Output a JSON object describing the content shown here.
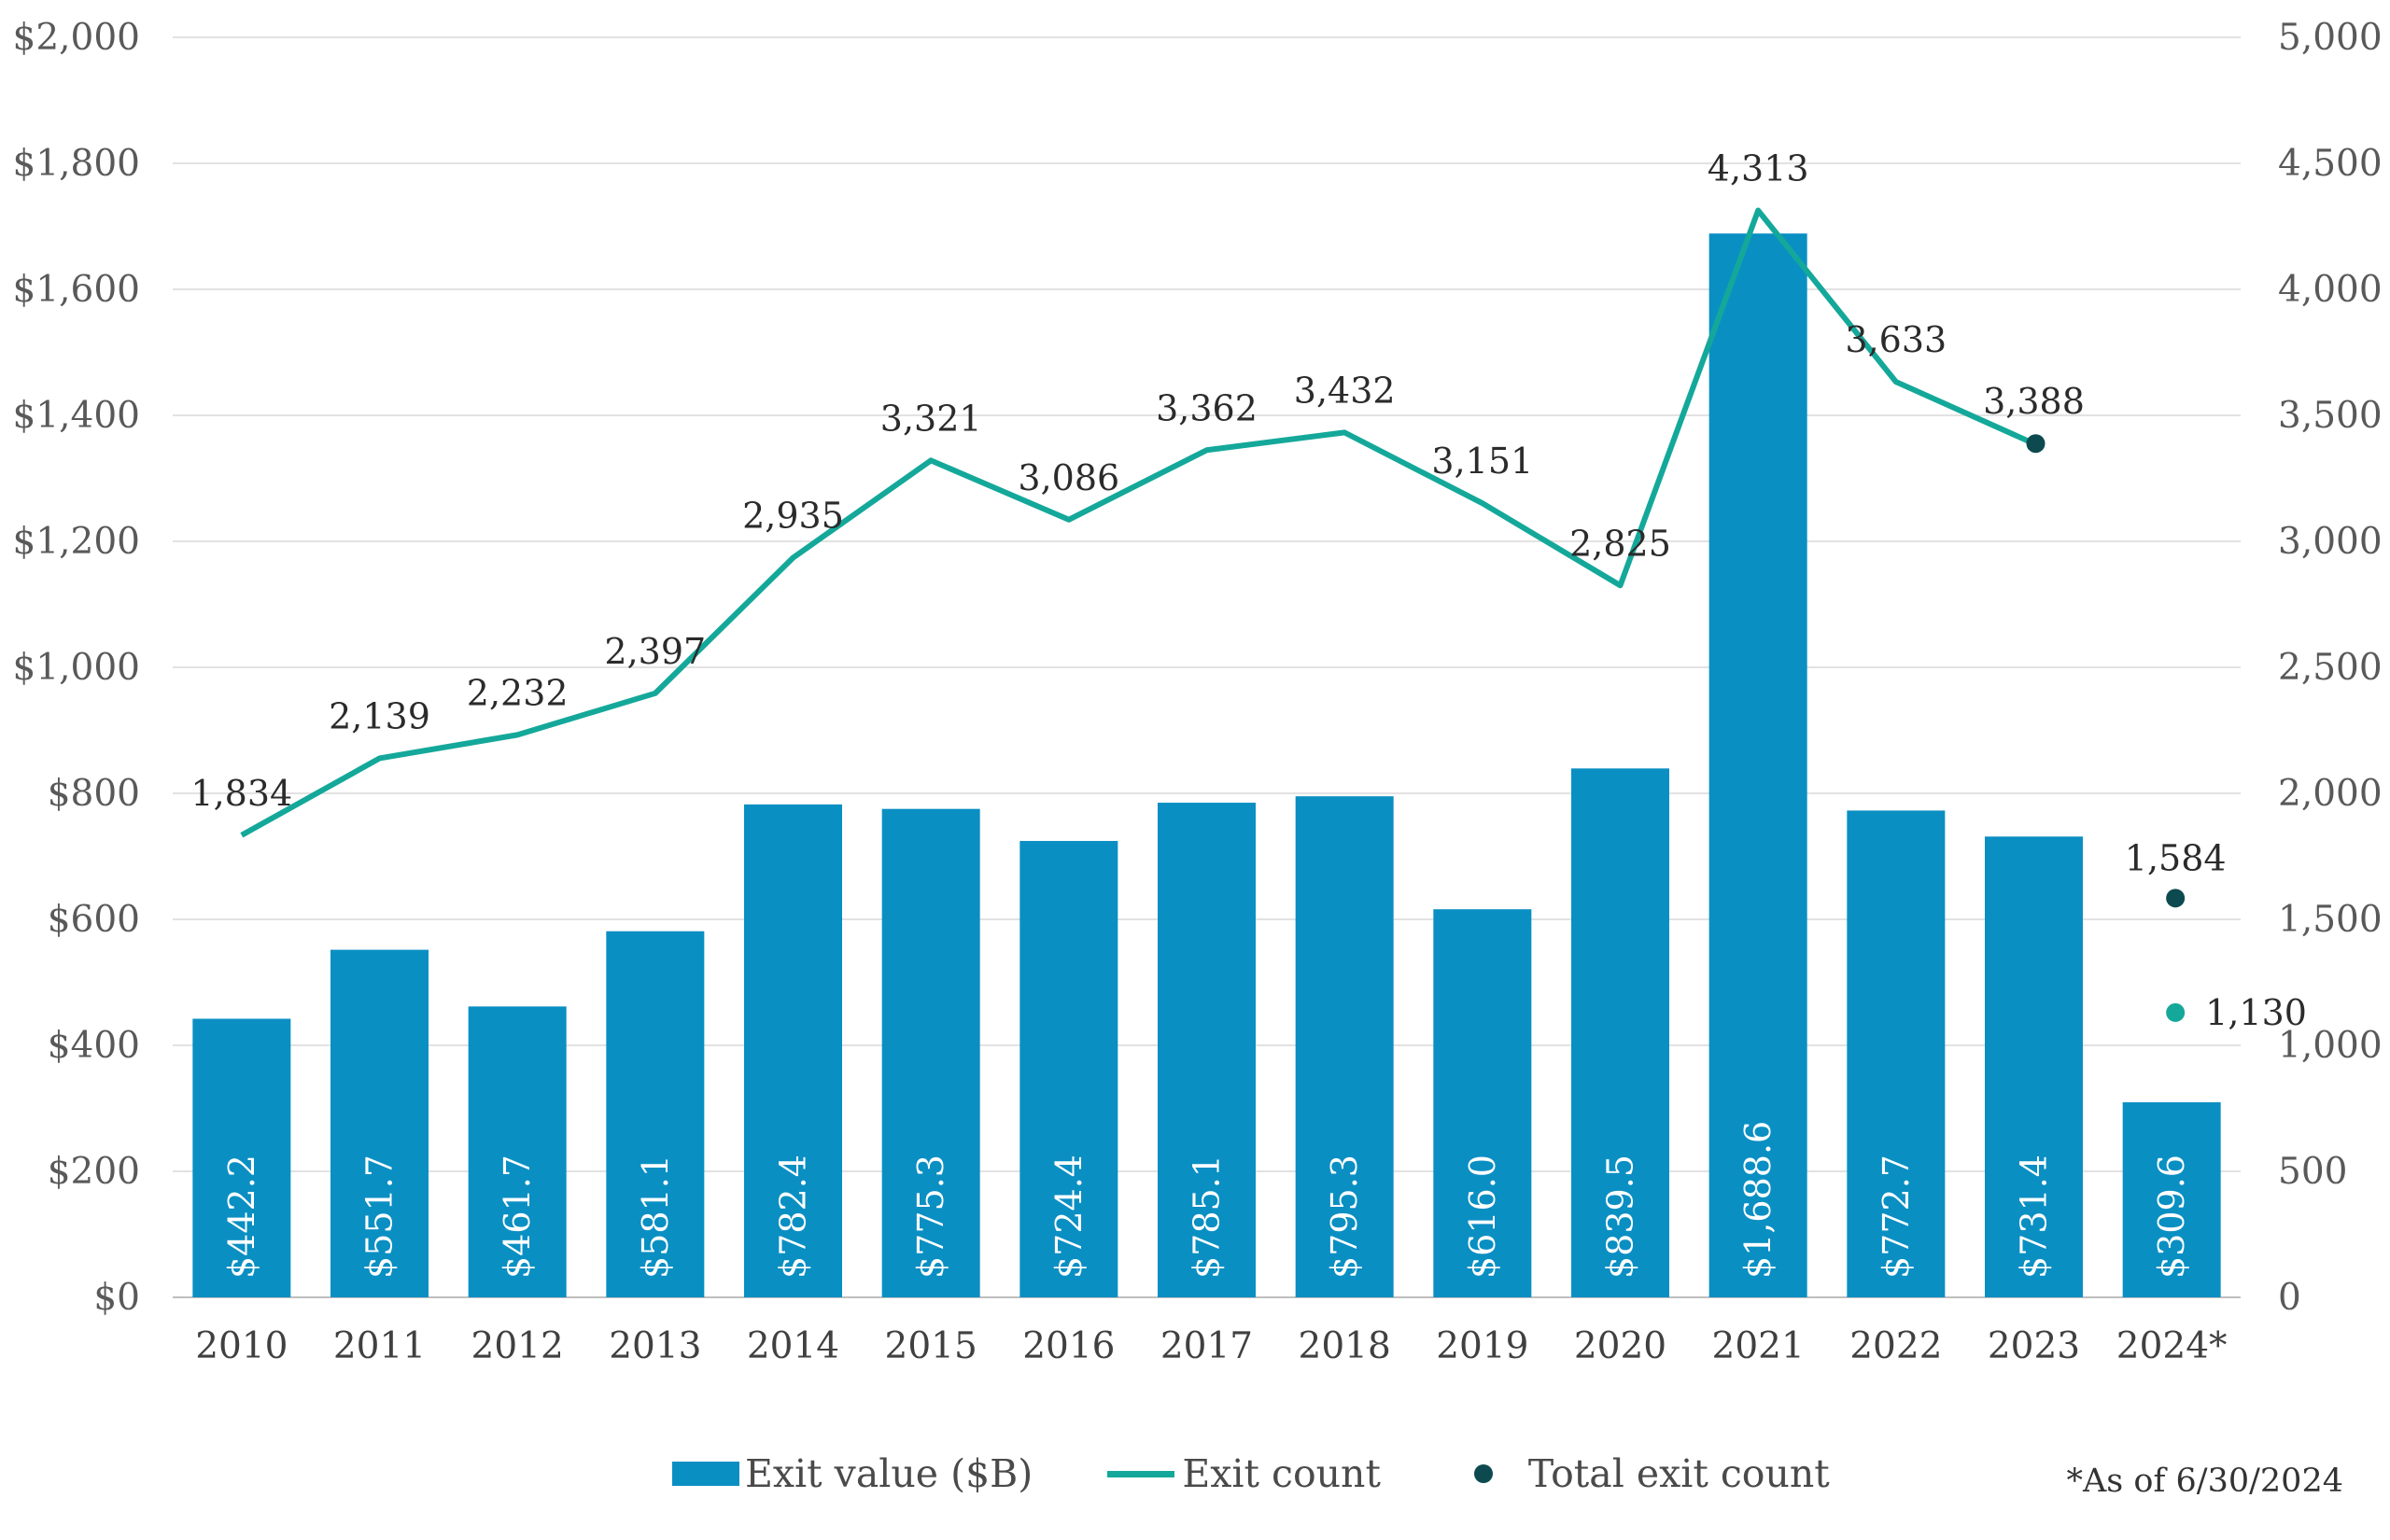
{
  "chart_data": {
    "type": "bar",
    "categories": [
      "2010",
      "2011",
      "2012",
      "2013",
      "2014",
      "2015",
      "2016",
      "2017",
      "2018",
      "2019",
      "2020",
      "2021",
      "2022",
      "2023",
      "2024*"
    ],
    "left_axis": {
      "ylim": [
        0,
        2000
      ],
      "ticks": [
        "$0",
        "$200",
        "$400",
        "$600",
        "$800",
        "$1,000",
        "$1,200",
        "$1,400",
        "$1,600",
        "$1,800",
        "$2,000"
      ]
    },
    "right_axis": {
      "ylim": [
        0,
        5000
      ],
      "ticks": [
        "0",
        "500",
        "1,000",
        "1,500",
        "2,000",
        "2,500",
        "3,000",
        "3,500",
        "4,000",
        "4,500",
        "5,000"
      ]
    },
    "series": [
      {
        "name": "Exit value ($B)",
        "type": "bar",
        "axis": "left",
        "color": "#0a8fc3",
        "values": [
          442.2,
          551.7,
          461.7,
          581.1,
          782.4,
          775.3,
          724.4,
          785.1,
          795.3,
          616.0,
          839.5,
          1688.6,
          772.7,
          731.4,
          309.6
        ],
        "labels": [
          "$442.2",
          "$551.7",
          "$461.7",
          "$581.1",
          "$782.4",
          "$775.3",
          "$724.4",
          "$785.1",
          "$795.3",
          "$616.0",
          "$839.5",
          "$1,688.6",
          "$772.7",
          "$731.4",
          "$309.6"
        ]
      },
      {
        "name": "Exit count",
        "type": "line",
        "axis": "right",
        "color": "#14a89a",
        "values": [
          1834,
          2139,
          2232,
          2397,
          2935,
          3321,
          3086,
          3362,
          3432,
          3151,
          2825,
          4313,
          3633,
          3388,
          null
        ],
        "labels": [
          "1,834",
          "2,139",
          "2,232",
          "2,397",
          "2,935",
          "3,321",
          "3,086",
          "3,362",
          "3,432",
          "3,151",
          "2,825",
          "4,313",
          "3,633",
          "3,388",
          ""
        ]
      },
      {
        "name": "Total exit count",
        "type": "scatter",
        "axis": "right",
        "color": "#0d4a4f",
        "points": [
          {
            "category": "2023",
            "value": 3388
          },
          {
            "category": "2024*",
            "value": 1584,
            "label": "1,584"
          }
        ]
      }
    ],
    "extra_points": [
      {
        "category": "2024*",
        "value": 1130,
        "label": "1,130",
        "color": "#14a89a"
      }
    ],
    "grid": true,
    "legend_position": "bottom",
    "footnote": "*As of 6/30/2024"
  }
}
